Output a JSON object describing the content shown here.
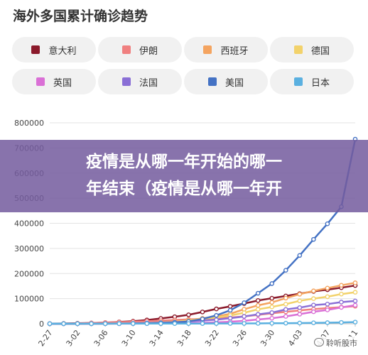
{
  "banner": {
    "line1": "疫情是从哪一年开始的哪一",
    "line2": "年结束（疫情是从哪一年开"
  },
  "watermark": "聆听股市",
  "chart_data": {
    "type": "line",
    "title": "海外多国累计确诊趋势",
    "xlabel": "",
    "ylabel": "",
    "ylim": [
      0,
      800000
    ],
    "yticks": [
      0,
      100000,
      200000,
      300000,
      400000,
      500000,
      600000,
      700000,
      800000
    ],
    "grid": true,
    "legend_position": "top",
    "x": [
      "2-27",
      "2-29",
      "3-02",
      "3-04",
      "3-06",
      "3-08",
      "3-10",
      "3-12",
      "3-14",
      "3-16",
      "3-18",
      "3-20",
      "3-22",
      "3-24",
      "3-26",
      "3-28",
      "3-30",
      "4-01",
      "4-03",
      "4-05",
      "4-07",
      "4-09",
      "4-11"
    ],
    "xtick_labels": [
      "2-27",
      "3-02",
      "3-06",
      "3-10",
      "3-14",
      "3-18",
      "3-22",
      "3-26",
      "3-30",
      "4-03",
      "4-07",
      "4-11"
    ],
    "series": [
      {
        "name": "意大利",
        "color": "#8b1a2b",
        "values": [
          700,
          1100,
          2000,
          3100,
          4600,
          7400,
          10100,
          15100,
          21100,
          27900,
          35700,
          47000,
          59100,
          69200,
          80600,
          92500,
          101700,
          110600,
          119800,
          128900,
          135600,
          143600,
          152300
        ]
      },
      {
        "name": "伊朗",
        "color": "#f08080",
        "values": [
          400,
          600,
          1500,
          2900,
          4700,
          6600,
          8000,
          10100,
          12700,
          15000,
          17400,
          19600,
          21600,
          24800,
          29400,
          35400,
          41500,
          47600,
          53200,
          58200,
          62600,
          66200,
          70000
        ]
      },
      {
        "name": "西班牙",
        "color": "#f4a460",
        "values": [
          20,
          40,
          110,
          220,
          400,
          670,
          1700,
          3100,
          6400,
          9900,
          13900,
          21600,
          28600,
          39700,
          57800,
          73200,
          85200,
          102100,
          117700,
          130800,
          141900,
          153200,
          163000
        ]
      },
      {
        "name": "德国",
        "color": "#f2d26b",
        "values": [
          30,
          80,
          150,
          260,
          670,
          1100,
          1500,
          2700,
          4600,
          7300,
          12300,
          19800,
          24900,
          32900,
          43900,
          57300,
          66900,
          77900,
          91200,
          100100,
          107700,
          118200,
          125500
        ]
      },
      {
        "name": "英国",
        "color": "#da70d6",
        "values": [
          20,
          30,
          40,
          90,
          160,
          270,
          380,
          590,
          1100,
          1500,
          2600,
          4000,
          5700,
          8100,
          11600,
          17100,
          22100,
          29500,
          38200,
          47800,
          55200,
          65100,
          73800
        ]
      },
      {
        "name": "法国",
        "color": "#8a6fd6",
        "values": [
          60,
          100,
          190,
          290,
          650,
          1100,
          1800,
          2900,
          4500,
          6600,
          9100,
          12600,
          16000,
          22300,
          29200,
          37500,
          44500,
          56900,
          64300,
          74400,
          78200,
          86300,
          90700
        ]
      },
      {
        "name": "美国",
        "color": "#4472c4",
        "values": [
          60,
          70,
          100,
          160,
          320,
          550,
          960,
          1700,
          2900,
          4600,
          9400,
          19100,
          33300,
          53700,
          83500,
          121500,
          160000,
          213000,
          272000,
          336000,
          398000,
          466000,
          735000
        ]
      },
      {
        "name": "日本",
        "color": "#5ab0e0",
        "values": [
          200,
          220,
          250,
          290,
          360,
          450,
          550,
          640,
          740,
          820,
          860,
          960,
          1050,
          1140,
          1300,
          1500,
          1900,
          2300,
          2900,
          3700,
          4300,
          5300,
          6700
        ]
      }
    ]
  }
}
